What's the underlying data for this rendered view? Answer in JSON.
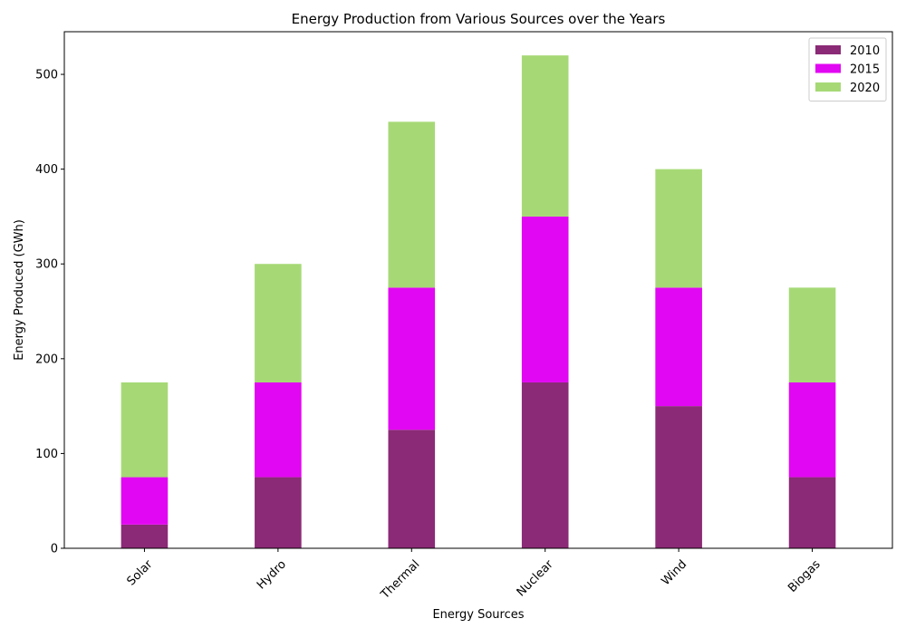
{
  "chart_data": {
    "type": "bar",
    "stacked": true,
    "title": "Energy Production from Various Sources over the Years",
    "xlabel": "Energy Sources",
    "ylabel": "Energy Produced (GWh)",
    "categories": [
      "Solar",
      "Hydro",
      "Thermal",
      "Nuclear",
      "Wind",
      "Biogas"
    ],
    "series": [
      {
        "name": "2010",
        "color": "#8b2a76",
        "values": [
          25,
          75,
          125,
          175,
          150,
          75
        ]
      },
      {
        "name": "2015",
        "color": "#e207f2",
        "values": [
          50,
          100,
          150,
          175,
          125,
          100
        ]
      },
      {
        "name": "2020",
        "color": "#a6d976",
        "values": [
          100,
          125,
          175,
          170,
          125,
          100
        ]
      }
    ],
    "ylim": [
      0,
      545
    ],
    "yticks": [
      0,
      100,
      200,
      300,
      400,
      500
    ],
    "grid": false,
    "legend_position": "top-right"
  }
}
